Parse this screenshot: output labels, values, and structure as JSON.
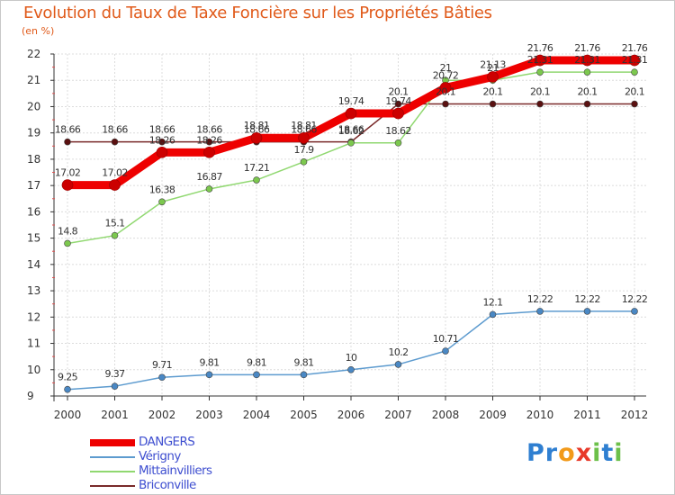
{
  "title": "Evolution du Taux de Taxe Foncière sur les Propriétés Bâties",
  "ylabel": "(en %)",
  "logo": {
    "letters": [
      "P",
      "r",
      "o",
      "x",
      "i",
      "t",
      "i"
    ],
    "colors": [
      "#2f7fd1",
      "#2f7fd1",
      "#f29a1a",
      "#e83a2a",
      "#6cc04a",
      "#2f7fd1",
      "#6cc04a"
    ]
  },
  "chart_data": {
    "type": "line",
    "title": "Evolution du Taux de Taxe Foncière sur les Propriétés Bâties",
    "ylabel": "(en %)",
    "xlabel": "",
    "x": [
      "2000",
      "2001",
      "2002",
      "2003",
      "2004",
      "2005",
      "2006",
      "2007",
      "2008",
      "2009",
      "2010",
      "2011",
      "2012"
    ],
    "ylim": [
      9,
      22
    ],
    "yticks": [
      9,
      10,
      11,
      12,
      13,
      14,
      15,
      16,
      17,
      18,
      19,
      20,
      21,
      22
    ],
    "grid": true,
    "legend_position": "bottom-left",
    "series": [
      {
        "name": "DANGERS",
        "color": "#ee0000",
        "values": [
          17.02,
          17.02,
          18.26,
          18.26,
          18.81,
          18.81,
          19.74,
          19.74,
          20.72,
          21.13,
          21.76,
          21.76,
          21.76
        ],
        "labels": [
          "17.02",
          "17.02",
          "18.26",
          "18.26",
          "18.81",
          "18.81",
          "19.74",
          "19.74",
          "20.72",
          "21.13",
          "21.76",
          "21.76",
          "21.76"
        ]
      },
      {
        "name": "Vérigny",
        "color": "#5d9bcf",
        "values": [
          9.25,
          9.37,
          9.71,
          9.81,
          9.81,
          9.81,
          10,
          10.2,
          10.71,
          12.1,
          12.22,
          12.22,
          12.22
        ],
        "labels": [
          "9.25",
          "9.37",
          "9.71",
          "9.81",
          "9.81",
          "9.81",
          "10",
          "10.2",
          "10.71",
          "12.1",
          "12.22",
          "12.22",
          "12.22"
        ]
      },
      {
        "name": "Mittainvilliers",
        "color": "#90d870",
        "values": [
          14.8,
          15.1,
          16.38,
          16.87,
          17.21,
          17.9,
          18.62,
          18.62,
          21,
          21,
          21.31,
          21.31,
          21.31
        ],
        "labels": [
          "14.8",
          "15.1",
          "16.38",
          "16.87",
          "17.21",
          "17.9",
          "18.62",
          "18.62",
          "21",
          "21",
          "21.31",
          "21.31",
          "21.31"
        ]
      },
      {
        "name": "Briconville",
        "color": "#7a2a2a",
        "values": [
          18.66,
          18.66,
          18.66,
          18.66,
          18.66,
          18.66,
          18.66,
          20.1,
          20.1,
          20.1,
          20.1,
          20.1,
          20.1
        ],
        "labels": [
          "18.66",
          "18.66",
          "18.66",
          "18.66",
          "18.66",
          "18.66",
          "18.66",
          "20.1",
          "20.1",
          "20.1",
          "20.1",
          "20.1",
          "20.1"
        ]
      }
    ]
  }
}
